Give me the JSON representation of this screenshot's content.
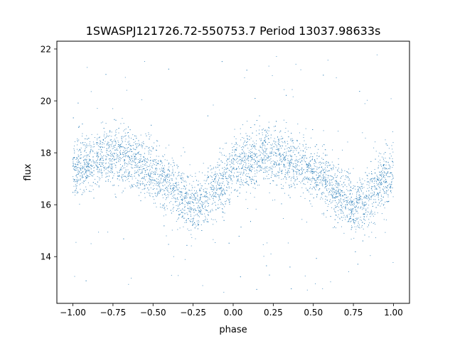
{
  "chart_data": {
    "type": "scatter",
    "title": "1SWASPJ121726.72-550753.7 Period 13037.98633s",
    "xlabel": "phase",
    "ylabel": "flux",
    "xlim": [
      -1.1,
      1.1
    ],
    "ylim": [
      12.2,
      22.3
    ],
    "x_ticks": [
      -1.0,
      -0.75,
      -0.5,
      -0.25,
      0.0,
      0.25,
      0.5,
      0.75,
      1.0
    ],
    "x_tick_labels": [
      "−1.00",
      "−0.75",
      "−0.50",
      "−0.25",
      "0.00",
      "0.25",
      "0.50",
      "0.75",
      "1.00"
    ],
    "y_ticks": [
      14,
      16,
      18,
      20,
      22
    ],
    "y_tick_labels": [
      "14",
      "16",
      "18",
      "20",
      "22"
    ],
    "grid": false,
    "legend": "none",
    "marker_color": "#1f77b4",
    "series": [
      {
        "phase_range": [
          -1.0,
          1.0
        ],
        "mean_flux_curve": {
          "phase": [
            -1.0,
            -0.9,
            -0.8,
            -0.7,
            -0.6,
            -0.5,
            -0.4,
            -0.3,
            -0.25,
            -0.2,
            -0.1,
            0.0,
            0.1,
            0.2,
            0.3,
            0.4,
            0.5,
            0.6,
            0.7,
            0.75,
            0.8,
            0.9,
            1.0
          ],
          "flux": [
            17.3,
            17.6,
            17.9,
            17.9,
            17.6,
            17.2,
            16.8,
            16.2,
            15.9,
            16.0,
            16.7,
            17.3,
            17.6,
            17.9,
            17.9,
            17.6,
            17.2,
            16.8,
            16.2,
            15.9,
            16.0,
            16.7,
            17.3
          ]
        },
        "scatter_spread": 0.55,
        "outlier_range": [
          12.6,
          21.8
        ]
      }
    ]
  }
}
